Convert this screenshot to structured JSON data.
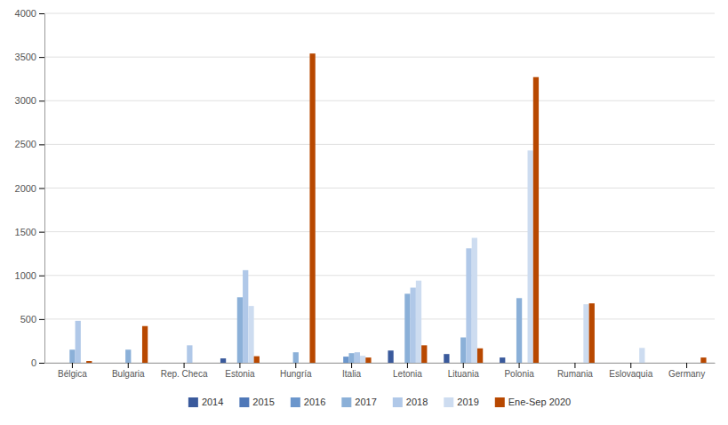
{
  "chart_data": {
    "type": "bar",
    "categories": [
      "Bélgica",
      "Bulgaria",
      "Rep. Checa",
      "Estonia",
      "Hungría",
      "Italia",
      "Letonia",
      "Lituania",
      "Polonia",
      "Rumania",
      "Eslovaquia",
      "Germany"
    ],
    "series": [
      {
        "name": "2014",
        "color": "#3a5a9c",
        "values": [
          0,
          0,
          0,
          50,
          0,
          0,
          140,
          100,
          60,
          0,
          0,
          0
        ]
      },
      {
        "name": "2015",
        "color": "#4f78b8",
        "values": [
          0,
          0,
          0,
          0,
          0,
          0,
          0,
          0,
          0,
          0,
          0,
          0
        ]
      },
      {
        "name": "2016",
        "color": "#6b96cc",
        "values": [
          0,
          0,
          0,
          0,
          0,
          70,
          0,
          0,
          0,
          0,
          0,
          0
        ]
      },
      {
        "name": "2017",
        "color": "#8bb0d8",
        "values": [
          150,
          150,
          0,
          750,
          120,
          110,
          790,
          290,
          740,
          0,
          0,
          0
        ]
      },
      {
        "name": "2018",
        "color": "#b0c8e8",
        "values": [
          480,
          0,
          200,
          1060,
          0,
          120,
          860,
          1310,
          0,
          0,
          0,
          0
        ]
      },
      {
        "name": "2019",
        "color": "#cddcf0",
        "values": [
          0,
          0,
          0,
          650,
          0,
          80,
          940,
          1430,
          2430,
          670,
          170,
          0
        ]
      },
      {
        "name": "Ene-Sep 2020",
        "color": "#b84800",
        "values": [
          20,
          420,
          0,
          75,
          3540,
          60,
          200,
          165,
          3270,
          680,
          0,
          60
        ]
      }
    ],
    "ylim": [
      0,
      4000
    ],
    "yticks": [
      0,
      500,
      1000,
      1500,
      2000,
      2500,
      3000,
      3500,
      4000
    ],
    "grid": true,
    "legend": "bottom"
  }
}
